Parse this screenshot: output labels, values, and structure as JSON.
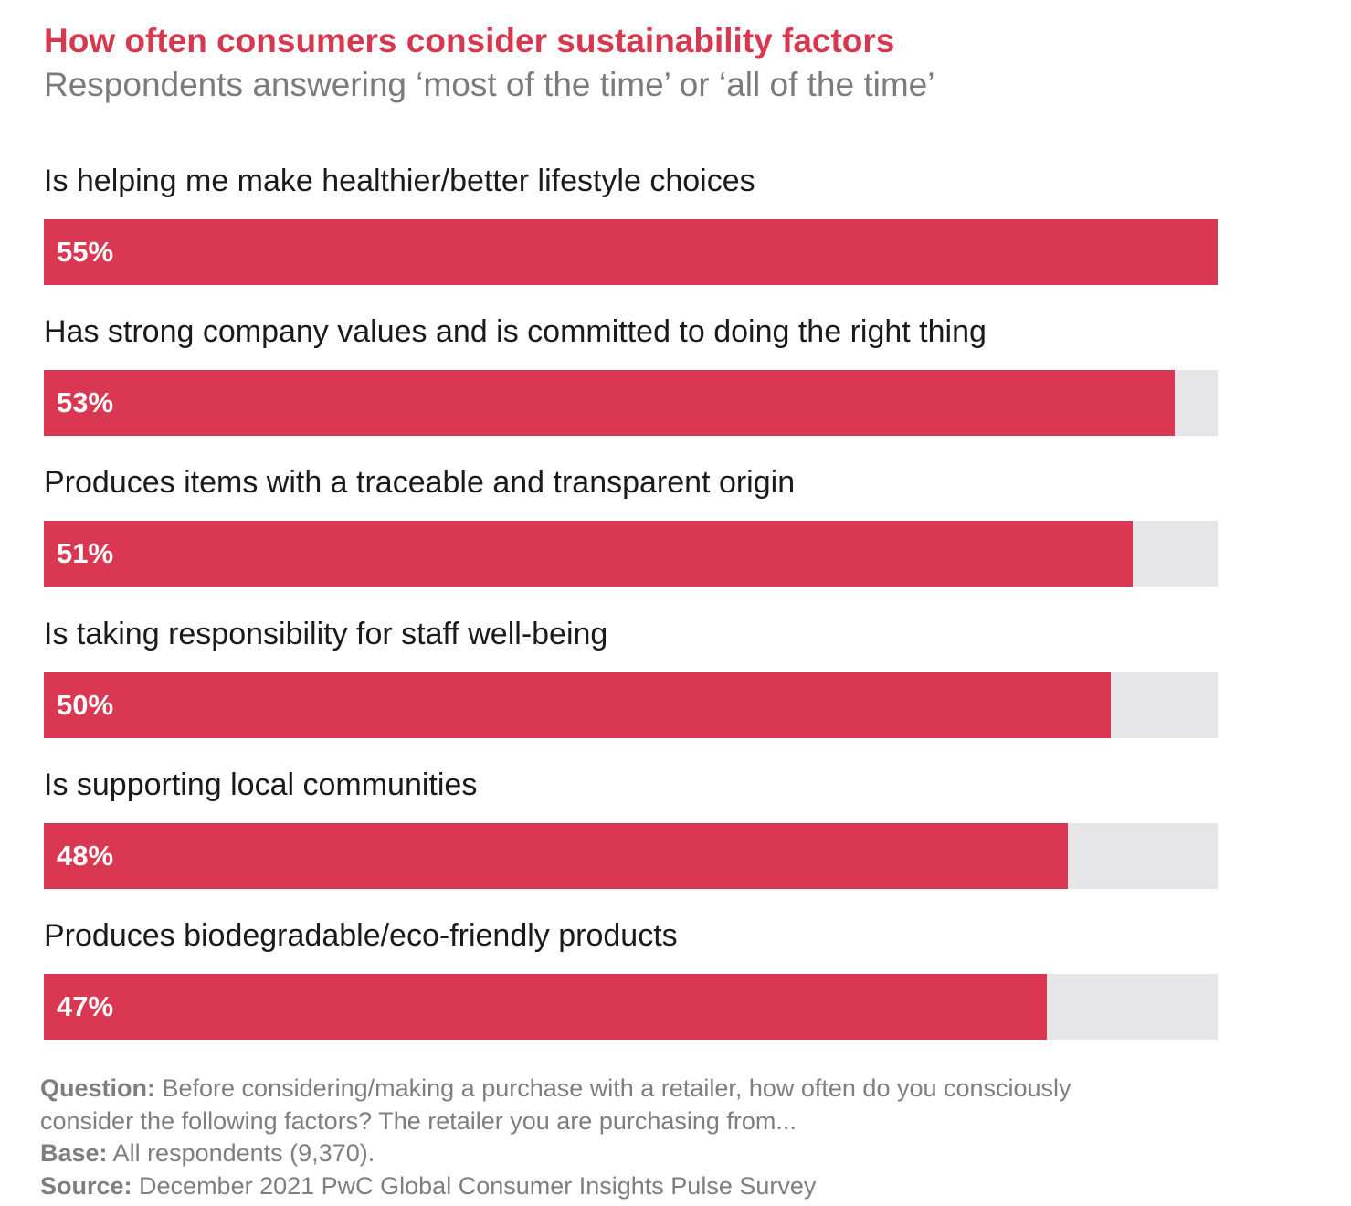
{
  "chart_data": {
    "type": "bar",
    "orientation": "horizontal",
    "title": "How often consumers consider sustainability factors",
    "subtitle": "Respondents answering ‘most of the time’ or ‘all of the time’",
    "categories": [
      "Is helping me make healthier/better lifestyle choices",
      "Has strong company values and is committed to doing the right thing",
      "Produces items with a traceable and transparent origin",
      "Is taking responsibility for staff well-being",
      "Is supporting local communities",
      "Produces biodegradable/eco-friendly products"
    ],
    "values": [
      55,
      53,
      51,
      50,
      48,
      47
    ],
    "data_labels": [
      "55%",
      "53%",
      "51%",
      "50%",
      "48%",
      "47%"
    ],
    "xlim": [
      0,
      55
    ],
    "grid": false,
    "colors": {
      "bar": "#da3753",
      "track": "#e6e6e8",
      "title": "#d6384f"
    }
  },
  "footer": {
    "question_label": "Question:",
    "question_text": " Before considering/making a purchase with a retailer, how often do you consciously consider the following factors? The retailer you are purchasing from...",
    "base_label": "Base:",
    "base_text": " All respondents (9,370).",
    "source_label": "Source:",
    "source_text": " December 2021 PwC Global Consumer Insights Pulse Survey"
  }
}
